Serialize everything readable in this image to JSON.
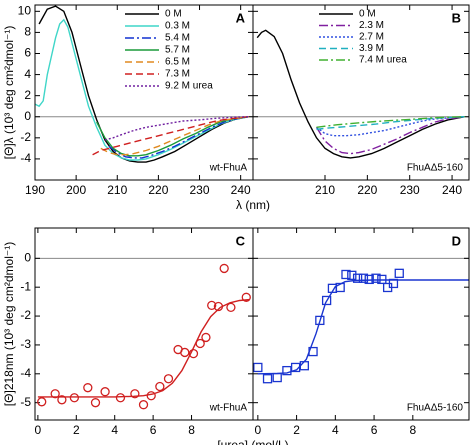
{
  "chart_data": [
    {
      "type": "line",
      "panel_label": "A",
      "annotation": "wt-FhuA",
      "ylabel": "[Θ]λ (10³ deg cm²dmol⁻¹)",
      "xlabel": "λ (nm)",
      "xlim": [
        190,
        243
      ],
      "ylim": [
        -6,
        10.6
      ],
      "xticks": [
        190,
        200,
        210,
        220,
        230,
        240
      ],
      "yticks": [
        -4,
        -2,
        0,
        2,
        4,
        6,
        8,
        10
      ],
      "zero_line": true,
      "legend": "upper right",
      "series": [
        {
          "name": "0 M",
          "color": "#000000",
          "dash": "solid",
          "x": [
            191,
            193,
            195,
            197,
            199,
            201,
            203,
            205,
            207,
            209,
            211,
            213,
            215,
            217,
            219,
            221,
            224,
            227,
            230,
            233,
            236,
            239,
            242
          ],
          "values": [
            8.8,
            10.2,
            10.5,
            10.0,
            8,
            5,
            2,
            -0.3,
            -2.2,
            -3.3,
            -3.9,
            -4.2,
            -4.3,
            -4.3,
            -4.1,
            -3.8,
            -3.3,
            -2.6,
            -1.9,
            -1.2,
            -0.6,
            -0.2,
            0
          ]
        },
        {
          "name": "0.3 M",
          "color": "#3fd6c8",
          "dash": "solid",
          "x": [
            190,
            191,
            192,
            193,
            195,
            196,
            197,
            198,
            199,
            201,
            203,
            205,
            207,
            209,
            211,
            213,
            215,
            217,
            220,
            223,
            226,
            229,
            232,
            235,
            238,
            242
          ],
          "values": [
            1.2,
            1,
            1.5,
            4,
            7.5,
            8.8,
            9.2,
            8.5,
            7,
            4,
            1,
            -1,
            -2.7,
            -3.5,
            -3.9,
            -4.1,
            -4.1,
            -4.0,
            -3.6,
            -3.1,
            -2.5,
            -1.9,
            -1.3,
            -0.7,
            -0.3,
            0
          ]
        },
        {
          "name": "5.4 M",
          "color": "#1030d0",
          "dash": "dashdot",
          "x": [
            208,
            210,
            212,
            214,
            216,
            218,
            221,
            224,
            227,
            230,
            233,
            236,
            239,
            242
          ],
          "values": [
            -2.8,
            -3.4,
            -3.8,
            -3.9,
            -3.9,
            -3.7,
            -3.3,
            -2.8,
            -2.2,
            -1.6,
            -1.0,
            -0.5,
            -0.2,
            0
          ]
        },
        {
          "name": "5.7 M",
          "color": "#1a9a3a",
          "dash": "solid",
          "x": [
            205,
            207,
            209,
            211,
            213,
            215,
            217,
            220,
            223,
            226,
            229,
            232,
            235,
            238,
            242
          ],
          "values": [
            -0.5,
            -2,
            -3,
            -3.5,
            -3.7,
            -3.7,
            -3.6,
            -3.2,
            -2.7,
            -2.1,
            -1.6,
            -1.0,
            -0.5,
            -0.2,
            0
          ]
        },
        {
          "name": "6.5 M",
          "color": "#e08a20",
          "dash": "dashed",
          "x": [
            206,
            208,
            210,
            212,
            214,
            217,
            220,
            223,
            226,
            229,
            232,
            235,
            238,
            242
          ],
          "values": [
            -3.0,
            -3.4,
            -3.6,
            -3.6,
            -3.5,
            -3.2,
            -2.8,
            -2.3,
            -1.8,
            -1.3,
            -0.8,
            -0.4,
            -0.2,
            0
          ]
        },
        {
          "name": "7.3 M",
          "color": "#d02020",
          "dash": "dashed",
          "x": [
            204,
            206,
            208,
            210,
            213,
            216,
            219,
            222,
            225,
            228,
            231,
            234,
            237,
            242
          ],
          "values": [
            -3.6,
            -3.2,
            -3,
            -2.8,
            -2.5,
            -2.2,
            -1.9,
            -1.6,
            -1.3,
            -1.0,
            -0.7,
            -0.4,
            -0.2,
            0
          ]
        },
        {
          "name": "9.2 M urea",
          "color": "#7020a0",
          "dash": "dotted",
          "x": [
            207,
            209,
            211,
            214,
            217,
            220,
            223,
            226,
            230,
            234,
            238,
            242
          ],
          "values": [
            -2.2,
            -2.0,
            -1.7,
            -1.3,
            -1.0,
            -0.8,
            -0.6,
            -0.4,
            -0.3,
            -0.15,
            -0.05,
            0
          ]
        }
      ]
    },
    {
      "type": "line",
      "panel_label": "B",
      "annotation": "FhuAΔ5-160",
      "xlim": [
        193,
        244
      ],
      "ylim": [
        -6,
        10.6
      ],
      "xticks": [
        210,
        220,
        230,
        240
      ],
      "yticks": [
        -4,
        -2,
        0,
        2,
        4,
        6,
        8,
        10
      ],
      "ytick_labels": false,
      "zero_line": true,
      "legend": "upper right",
      "series": [
        {
          "name": "0 M",
          "color": "#000000",
          "dash": "solid",
          "x": [
            194,
            195,
            196,
            198,
            200,
            202,
            204,
            206,
            208,
            210,
            212,
            214,
            216,
            218,
            221,
            224,
            227,
            230,
            233,
            236,
            239,
            243
          ],
          "values": [
            7.5,
            8,
            8.2,
            7.6,
            6,
            3.5,
            1.3,
            -0.5,
            -2,
            -3,
            -3.5,
            -3.8,
            -3.9,
            -3.8,
            -3.5,
            -3.0,
            -2.4,
            -1.8,
            -1.2,
            -0.7,
            -0.3,
            0
          ]
        },
        {
          "name": "2.3 M",
          "color": "#8020a0",
          "dash": "dashdot",
          "x": [
            208,
            210,
            212,
            214,
            216,
            218,
            221,
            224,
            227,
            230,
            233,
            236,
            239,
            243
          ],
          "values": [
            -1,
            -2.3,
            -3.0,
            -3.4,
            -3.5,
            -3.4,
            -3.1,
            -2.6,
            -2.1,
            -1.5,
            -1.0,
            -0.5,
            -0.2,
            0
          ]
        },
        {
          "name": "2.7 M",
          "color": "#3050e0",
          "dash": "dotted",
          "x": [
            208,
            210,
            212,
            215,
            218,
            221,
            224,
            227,
            230,
            233,
            236,
            243
          ],
          "values": [
            -1,
            -1.6,
            -1.8,
            -1.8,
            -1.7,
            -1.5,
            -1.3,
            -1.0,
            -0.7,
            -0.4,
            -0.2,
            0
          ]
        },
        {
          "name": "3.9 M",
          "color": "#20b0c0",
          "dash": "dashed",
          "x": [
            208,
            210,
            213,
            216,
            219,
            222,
            226,
            230,
            234,
            238,
            243
          ],
          "values": [
            -1.2,
            -1.1,
            -1.0,
            -0.9,
            -0.8,
            -0.7,
            -0.5,
            -0.35,
            -0.2,
            -0.1,
            0
          ]
        },
        {
          "name": "7.4 M urea",
          "color": "#40b030",
          "dash": "dashdot",
          "x": [
            208,
            210,
            213,
            216,
            219,
            222,
            226,
            230,
            234,
            238,
            243
          ],
          "values": [
            -1.0,
            -0.9,
            -0.75,
            -0.65,
            -0.55,
            -0.45,
            -0.35,
            -0.25,
            -0.15,
            -0.05,
            0
          ]
        }
      ]
    },
    {
      "type": "scatter",
      "panel_label": "C",
      "annotation": "wt-FhuA",
      "ylabel": "[Θ]218nm (10³ deg cm²dmol⁻¹)",
      "xlabel": "[urea] (mol/L)",
      "xlim": [
        -0.15,
        11.2
      ],
      "ylim": [
        -5.6,
        1.05
      ],
      "xticks": [
        0,
        2,
        4,
        6,
        8
      ],
      "yticks": [
        -5,
        -4,
        -3,
        -2,
        -1,
        0
      ],
      "zero_line": true,
      "series": [
        {
          "color": "#d02020",
          "style": "markers",
          "marker": "circle",
          "x": [
            0.2,
            0.9,
            1.25,
            1.9,
            2.6,
            3.0,
            3.5,
            4.3,
            5.05,
            5.5,
            5.9,
            6.35,
            6.8,
            7.3,
            7.65,
            8.1,
            8.45,
            8.75,
            9.05,
            9.4,
            9.7,
            10.05,
            10.85
          ],
          "values": [
            -4.97,
            -4.69,
            -4.9,
            -4.83,
            -4.48,
            -5.0,
            -4.62,
            -4.83,
            -4.69,
            -5.07,
            -4.76,
            -4.44,
            -4.17,
            -3.16,
            -3.26,
            -3.3,
            -2.95,
            -2.74,
            -1.63,
            -1.67,
            -0.35,
            -1.7,
            -1.35
          ]
        },
        {
          "color": "#d02020",
          "style": "line",
          "x": [
            0,
            1,
            2,
            3,
            4,
            5,
            5.5,
            6,
            6.5,
            7,
            7.5,
            8,
            8.5,
            9,
            9.5,
            10,
            10.5,
            11
          ],
          "values": [
            -4.8,
            -4.8,
            -4.8,
            -4.8,
            -4.8,
            -4.78,
            -4.76,
            -4.7,
            -4.58,
            -4.33,
            -3.89,
            -3.24,
            -2.55,
            -2.02,
            -1.7,
            -1.54,
            -1.46,
            -1.43
          ]
        }
      ]
    },
    {
      "type": "scatter",
      "panel_label": "D",
      "annotation": "FhuAΔ5-160",
      "xlim": [
        -0.25,
        10.9
      ],
      "ylim": [
        -5.6,
        1.05
      ],
      "xticks": [
        0,
        2,
        4,
        6,
        8
      ],
      "yticks": [
        -5,
        -4,
        -3,
        -2,
        -1,
        0
      ],
      "ytick_labels": false,
      "zero_line": true,
      "series": [
        {
          "color": "#1a35d0",
          "style": "markers",
          "marker": "square",
          "x": [
            0,
            0.5,
            1.0,
            1.5,
            1.95,
            2.4,
            2.85,
            3.2,
            3.55,
            3.85,
            4.25,
            4.55,
            4.85,
            5.15,
            5.45,
            5.75,
            6.1,
            6.4,
            6.7,
            7.0,
            7.3
          ],
          "values": [
            -3.78,
            -4.17,
            -4.13,
            -3.89,
            -3.78,
            -3.72,
            -3.23,
            -2.15,
            -1.46,
            -1.04,
            -1.01,
            -0.56,
            -0.59,
            -0.69,
            -0.69,
            -0.73,
            -0.69,
            -0.73,
            -1.01,
            -0.87,
            -0.52
          ]
        },
        {
          "color": "#1a35d0",
          "style": "line",
          "x": [
            0,
            1,
            1.5,
            2,
            2.5,
            3,
            3.5,
            4,
            4.5,
            5,
            6,
            7,
            8,
            9,
            10,
            10.9
          ],
          "values": [
            -4.0,
            -3.99,
            -3.97,
            -3.86,
            -3.5,
            -2.61,
            -1.54,
            -0.98,
            -0.81,
            -0.77,
            -0.75,
            -0.75,
            -0.75,
            -0.75,
            -0.75,
            -0.75
          ]
        }
      ]
    }
  ]
}
